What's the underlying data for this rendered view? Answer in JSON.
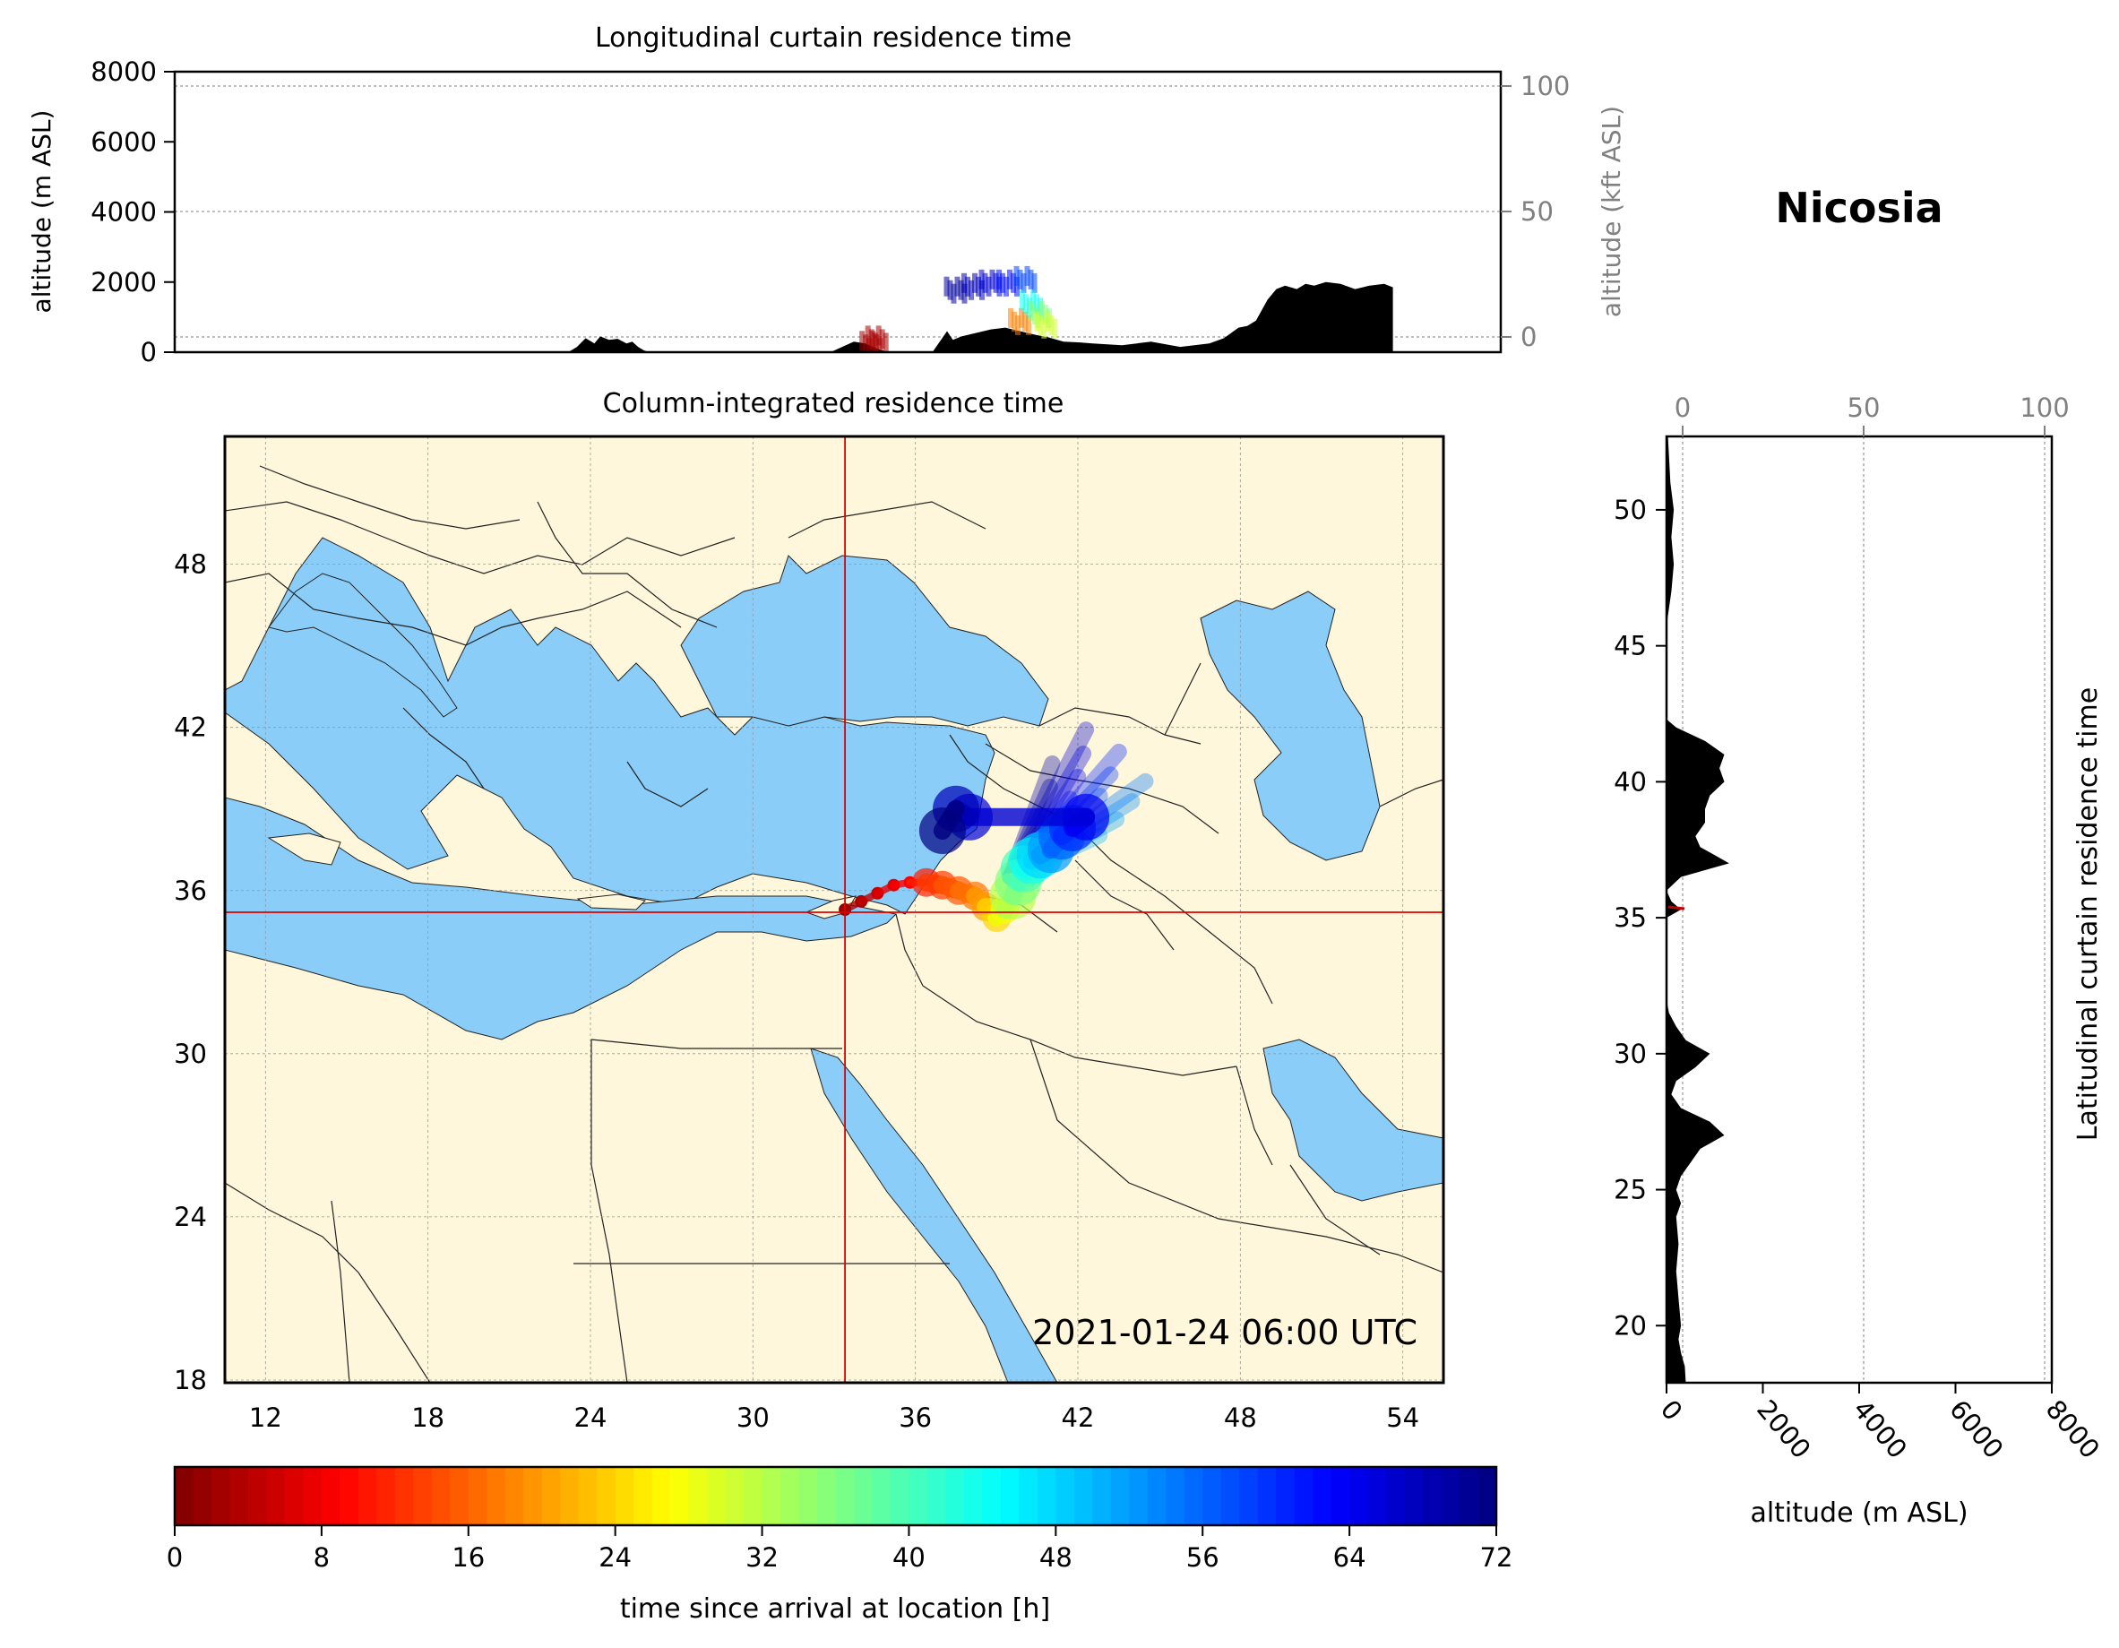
{
  "chart_data": [
    {
      "type": "area",
      "title": "Longitudinal curtain residence time",
      "xlabel": "",
      "ylabel": "altitude (m ASL)",
      "ylabel_right": "altitude (kft ASL)",
      "xlim": [
        10.5,
        56
      ],
      "ylim": [
        0,
        8000
      ],
      "yticks": [
        0,
        2000,
        4000,
        6000,
        8000
      ],
      "yticks_right": [
        0,
        50,
        100
      ],
      "grid": true,
      "series": [
        {
          "kind": "terrain",
          "x": [
            10.5,
            24.0,
            24.3,
            24.6,
            24.9,
            25.1,
            25.4,
            25.7,
            26.0,
            26.2,
            26.4,
            26.6,
            26.8,
            33.0,
            33.4,
            33.8,
            34.2,
            34.6,
            35.0,
            35.4,
            36.5,
            37.0,
            37.2,
            37.5,
            38.0,
            38.5,
            39.0,
            39.5,
            40.0,
            40.5,
            41.0,
            41.5,
            42.0,
            43.0,
            44.0,
            45.0,
            46.0,
            46.5,
            47.0,
            47.3,
            47.6,
            48.0,
            48.3,
            48.6,
            49.0,
            49.3,
            49.6,
            50.0,
            50.5,
            51.0,
            51.5,
            52.0,
            52.3,
            52.3,
            56.0
          ],
          "y": [
            0,
            0,
            150,
            400,
            250,
            450,
            350,
            380,
            250,
            300,
            150,
            50,
            0,
            0,
            150,
            300,
            250,
            100,
            0,
            0,
            0,
            600,
            350,
            450,
            550,
            650,
            700,
            600,
            500,
            420,
            300,
            280,
            250,
            200,
            300,
            150,
            250,
            400,
            700,
            750,
            900,
            1500,
            1800,
            1900,
            1800,
            1950,
            1900,
            2000,
            1950,
            1800,
            1900,
            1950,
            1850,
            0,
            0
          ]
        },
        {
          "kind": "residence",
          "note_color_by": "time since arrival at location [h]",
          "x": [
            34.3,
            34.5,
            37.2,
            37.8,
            38.4,
            39.0,
            39.6,
            39.4,
            39.8,
            40.1,
            40.3
          ],
          "y": [
            350,
            500,
            1900,
            2000,
            2100,
            2100,
            2200,
            1000,
            1500,
            1200,
            900
          ],
          "hours": [
            2,
            3,
            70,
            68,
            66,
            62,
            58,
            18,
            44,
            36,
            30
          ]
        }
      ]
    },
    {
      "type": "scatter",
      "title": "Column-integrated residence time",
      "xlim": [
        10.5,
        55.5
      ],
      "ylim": [
        17.9,
        52.7
      ],
      "xticks": [
        12,
        18,
        24,
        30,
        36,
        42,
        48,
        54
      ],
      "yticks": [
        18,
        24,
        30,
        36,
        42,
        48
      ],
      "grid": true,
      "location_crosshair": [
        33.4,
        35.2
      ],
      "timestamp": "2021-01-24 06:00 UTC",
      "trajectory": {
        "x": [
          33.4,
          34.0,
          34.6,
          35.2,
          35.8,
          36.4,
          37.0,
          37.6,
          38.2,
          38.6,
          39.0,
          39.3,
          39.6,
          39.8,
          40.0,
          40.3,
          40.6,
          41.0,
          41.4,
          41.8,
          42.3,
          38.0,
          37.5,
          37.0
        ],
        "y": [
          35.3,
          35.6,
          35.9,
          36.2,
          36.3,
          36.3,
          36.2,
          36.0,
          35.8,
          35.4,
          35.0,
          35.3,
          35.8,
          36.3,
          36.8,
          37.1,
          37.3,
          37.5,
          38.0,
          38.3,
          38.7,
          38.7,
          39.0,
          38.2
        ],
        "hours": [
          1,
          3,
          5,
          7,
          9,
          11,
          13,
          15,
          17,
          20,
          24,
          28,
          32,
          36,
          40,
          44,
          48,
          52,
          56,
          60,
          64,
          66,
          68,
          72
        ]
      }
    },
    {
      "type": "area",
      "title": "",
      "ylabel_right": "Latitudinal curtain residence time",
      "xlabel": "altitude (m ASL)",
      "xlim": [
        0,
        8000
      ],
      "ylim": [
        17.9,
        52.7
      ],
      "xticks": [
        0,
        2000,
        4000,
        6000,
        8000
      ],
      "xticks_top": [
        0,
        50,
        100
      ],
      "yticks": [
        20,
        25,
        30,
        35,
        40,
        45,
        50
      ],
      "grid": true,
      "series": [
        {
          "kind": "terrain",
          "y": [
            17.9,
            18.5,
            19.0,
            19.5,
            20.0,
            21.0,
            22.0,
            23.0,
            24.0,
            24.5,
            25.0,
            25.5,
            26.0,
            26.5,
            27.0,
            27.5,
            28.0,
            28.5,
            29.0,
            29.5,
            30.0,
            30.5,
            31.0,
            31.5,
            32.0,
            33.0,
            34.0,
            35.0,
            35.3,
            35.6,
            36.0,
            36.5,
            37.0,
            37.3,
            37.6,
            38.0,
            38.5,
            39.0,
            39.5,
            40.0,
            40.5,
            41.0,
            41.5,
            42.0,
            42.3,
            43.0,
            44.0,
            45.0,
            46.0,
            47.0,
            48.0,
            49.0,
            50.0,
            51.0,
            52.0,
            52.7
          ],
          "x": [
            400,
            380,
            300,
            250,
            300,
            250,
            200,
            250,
            200,
            300,
            200,
            300,
            500,
            700,
            1200,
            900,
            300,
            100,
            200,
            600,
            900,
            400,
            200,
            50,
            0,
            0,
            0,
            0,
            300,
            100,
            0,
            300,
            1300,
            1000,
            700,
            600,
            800,
            800,
            900,
            1200,
            1100,
            1200,
            800,
            200,
            0,
            0,
            0,
            0,
            20,
            100,
            150,
            100,
            150,
            80,
            50,
            30
          ]
        }
      ]
    }
  ],
  "location": "Nicosia",
  "colorbar": {
    "label": "time since arrival at location [h]",
    "ticks": [
      0,
      8,
      16,
      24,
      32,
      40,
      48,
      56,
      64,
      72
    ],
    "range": [
      0,
      72
    ],
    "colormap": "jet_r"
  },
  "colors": {
    "land": "#fff7dc",
    "water": "#89cdf8",
    "terrain": "#000000",
    "crosshair": "#e00000",
    "secondary_axis": "#808080"
  }
}
